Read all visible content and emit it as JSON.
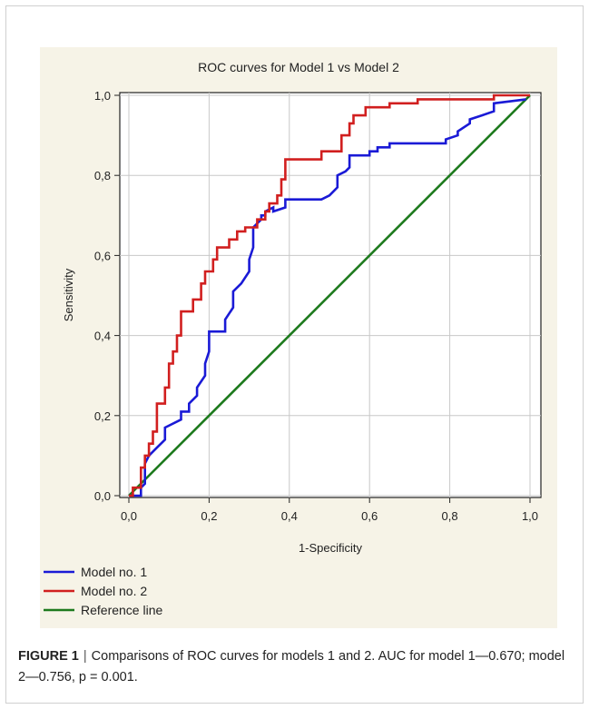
{
  "chart_data": {
    "type": "line",
    "title": "ROC curves for Model 1 vs Model 2",
    "xlabel": "1-Specificity",
    "ylabel": "Sensitivity",
    "xlim": [
      0,
      1
    ],
    "ylim": [
      0,
      1
    ],
    "xticks": [
      "0,0",
      "0,2",
      "0,4",
      "0,6",
      "0,8",
      "1,0"
    ],
    "yticks": [
      "0,0",
      "0,2",
      "0,4",
      "0,6",
      "0,8",
      "1,0"
    ],
    "grid": true,
    "legend_position": "bottom-left",
    "series": [
      {
        "name": "Model no. 1",
        "color": "#1a1ad6",
        "x": [
          0,
          0.03,
          0.03,
          0.04,
          0.04,
          0.05,
          0.07,
          0.09,
          0.09,
          0.13,
          0.13,
          0.15,
          0.15,
          0.17,
          0.17,
          0.19,
          0.19,
          0.2,
          0.2,
          0.24,
          0.24,
          0.26,
          0.26,
          0.28,
          0.3,
          0.3,
          0.31,
          0.31,
          0.33,
          0.33,
          0.34,
          0.34,
          0.36,
          0.36,
          0.39,
          0.39,
          0.48,
          0.5,
          0.52,
          0.52,
          0.54,
          0.55,
          0.55,
          0.6,
          0.6,
          0.62,
          0.62,
          0.65,
          0.65,
          0.79,
          0.79,
          0.82,
          0.82,
          0.85,
          0.85,
          0.88,
          0.91,
          0.91,
          0.99
        ],
        "y": [
          0,
          0,
          0.02,
          0.03,
          0.08,
          0.1,
          0.12,
          0.14,
          0.17,
          0.19,
          0.21,
          0.21,
          0.23,
          0.25,
          0.27,
          0.3,
          0.33,
          0.36,
          0.41,
          0.41,
          0.44,
          0.47,
          0.51,
          0.53,
          0.56,
          0.59,
          0.62,
          0.67,
          0.69,
          0.7,
          0.7,
          0.71,
          0.72,
          0.71,
          0.72,
          0.74,
          0.74,
          0.75,
          0.77,
          0.8,
          0.81,
          0.82,
          0.85,
          0.85,
          0.86,
          0.86,
          0.87,
          0.87,
          0.88,
          0.88,
          0.89,
          0.9,
          0.91,
          0.93,
          0.94,
          0.95,
          0.96,
          0.98,
          0.99
        ]
      },
      {
        "name": "Model no. 2",
        "color": "#d11f1f",
        "x": [
          0,
          0.01,
          0.01,
          0.03,
          0.03,
          0.04,
          0.04,
          0.05,
          0.05,
          0.06,
          0.06,
          0.07,
          0.07,
          0.09,
          0.09,
          0.1,
          0.1,
          0.11,
          0.11,
          0.12,
          0.12,
          0.13,
          0.13,
          0.16,
          0.16,
          0.18,
          0.18,
          0.19,
          0.19,
          0.21,
          0.21,
          0.22,
          0.22,
          0.25,
          0.25,
          0.27,
          0.27,
          0.29,
          0.29,
          0.32,
          0.32,
          0.34,
          0.34,
          0.35,
          0.35,
          0.37,
          0.37,
          0.38,
          0.38,
          0.39,
          0.39,
          0.48,
          0.48,
          0.53,
          0.53,
          0.55,
          0.55,
          0.56,
          0.56,
          0.59,
          0.59,
          0.65,
          0.65,
          0.72,
          0.72,
          0.91,
          0.91,
          0.96,
          0.96,
          1.0
        ],
        "y": [
          0,
          0,
          0.02,
          0.02,
          0.07,
          0.07,
          0.1,
          0.1,
          0.13,
          0.13,
          0.16,
          0.16,
          0.23,
          0.23,
          0.27,
          0.27,
          0.33,
          0.33,
          0.36,
          0.36,
          0.4,
          0.4,
          0.46,
          0.46,
          0.49,
          0.49,
          0.53,
          0.53,
          0.56,
          0.56,
          0.59,
          0.59,
          0.62,
          0.62,
          0.64,
          0.64,
          0.66,
          0.66,
          0.67,
          0.67,
          0.69,
          0.69,
          0.71,
          0.71,
          0.73,
          0.73,
          0.75,
          0.75,
          0.79,
          0.79,
          0.84,
          0.84,
          0.86,
          0.86,
          0.9,
          0.9,
          0.93,
          0.93,
          0.95,
          0.95,
          0.97,
          0.97,
          0.98,
          0.98,
          0.99,
          0.99,
          1.0,
          1.0,
          1.0,
          1.0
        ]
      },
      {
        "name": "Reference line",
        "color": "#1d7a1d",
        "x": [
          0,
          1
        ],
        "y": [
          0,
          1
        ]
      }
    ]
  },
  "caption": {
    "label": "FIGURE 1",
    "separator": "|",
    "text": "Comparisons of ROC curves for models 1 and 2. AUC for model 1—0.670; model 2—0.756, p = 0.001."
  }
}
